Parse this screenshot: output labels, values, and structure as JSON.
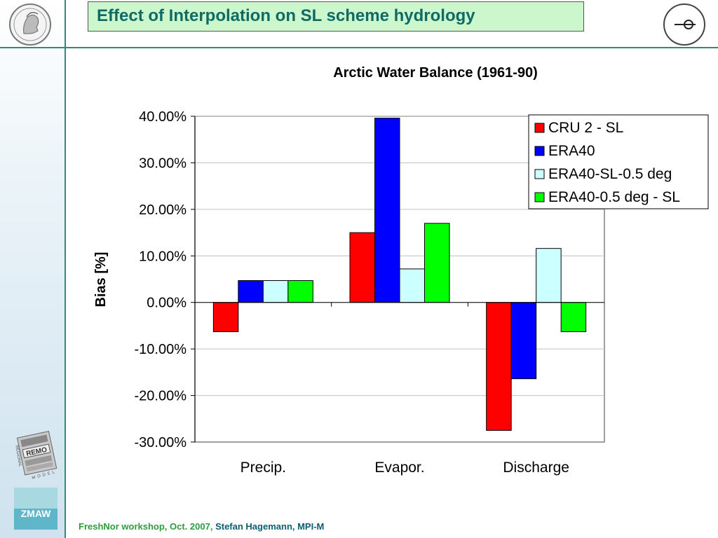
{
  "slide": {
    "title": "Effect of Interpolation on SL scheme hydrology",
    "footer_event": "FreshNor workshop, Oct. 2007,",
    "footer_author": "Stefan Hagemann, MPI-M",
    "logo_text_remo": "REMO",
    "logo_text_regional": "REGIONAL",
    "logo_text_model": "MODEL",
    "logo_text_zmaw": "ZMAW"
  },
  "colors": {
    "accent": "#2e8b7a",
    "title_bg": "#ccf7cc",
    "title_text": "#0f6a66"
  },
  "chart_data": {
    "type": "bar",
    "title": "Arctic Water Balance (1961-90)",
    "xlabel": "",
    "ylabel": "Bias [%]",
    "categories": [
      "Precip.",
      "Evapor.",
      "Discharge"
    ],
    "ylim": [
      -30,
      40
    ],
    "yticks": [
      40,
      30,
      20,
      10,
      0,
      -10,
      -20,
      -30
    ],
    "ytick_labels": [
      "40.00%",
      "30.00%",
      "20.00%",
      "10.00%",
      "0.00%",
      "-10.00%",
      "-20.00%",
      "-30.00%"
    ],
    "grid": true,
    "legend_position": "top-right",
    "series": [
      {
        "name": "CRU 2 - SL",
        "color": "#ff0000",
        "values": [
          -6.3,
          15.0,
          -27.5
        ]
      },
      {
        "name": "ERA40",
        "color": "#0000ff",
        "values": [
          4.7,
          39.6,
          -16.4
        ]
      },
      {
        "name": "ERA40-SL-0.5 deg",
        "color": "#ccffff",
        "values": [
          4.7,
          7.2,
          11.6
        ]
      },
      {
        "name": "ERA40-0.5 deg - SL",
        "color": "#00ff00",
        "values": [
          4.7,
          17.0,
          -6.3
        ]
      }
    ]
  }
}
